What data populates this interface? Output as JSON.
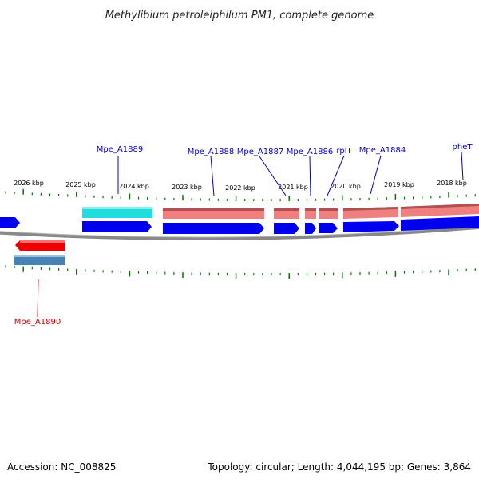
{
  "title": "Methylibium petroleiphilum PM1, complete genome",
  "footer": {
    "accession": "Accession: NC_008825",
    "summary": "Topology: circular; Length: 4,044,195 bp; Genes: 3,864"
  },
  "colors": {
    "gene_label": "#0000cc",
    "gene_label_reverse": "#cc0000",
    "cds_forward": "#0000ee",
    "gene_forward": "#f08080",
    "gene_forward_cyan": "#22dddd",
    "cds_reverse": "#4682b4",
    "gene_reverse": "#ee0000",
    "tick": "#007700",
    "backbone": "#888888"
  },
  "kbp_labels": [
    "2026 kbp",
    "2025 kbp",
    "2024 kbp",
    "2023 kbp",
    "2022 kbp",
    "2021 kbp",
    "2020 kbp",
    "2019 kbp",
    "2018 kbp"
  ],
  "forward_genes": [
    {
      "label": "Mpe_A1889",
      "gene_color": "cyan"
    },
    {
      "label": "Mpe_A1888",
      "gene_color": "salmon"
    },
    {
      "label": "Mpe_A1887",
      "gene_color": "salmon"
    },
    {
      "label": "Mpe_A1886",
      "gene_color": "salmon"
    },
    {
      "label": "rplT",
      "gene_color": "salmon"
    },
    {
      "label": "Mpe_A1884",
      "gene_color": "salmon"
    },
    {
      "label": "pheT",
      "gene_color": "salmon"
    }
  ],
  "reverse_genes": [
    {
      "label": "Mpe_A1890"
    }
  ]
}
